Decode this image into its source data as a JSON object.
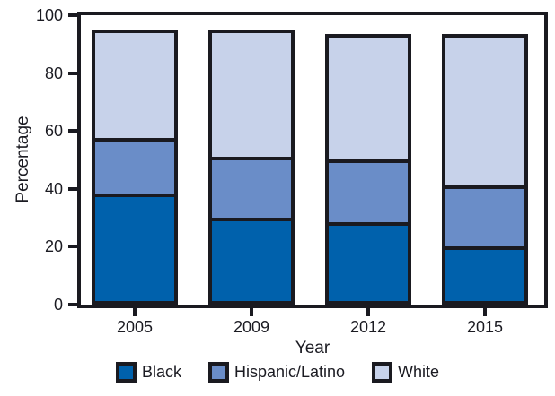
{
  "chart_data": {
    "type": "bar",
    "stacked": true,
    "title": "",
    "xlabel": "Year",
    "ylabel": "Percentage",
    "ylim": [
      0,
      100
    ],
    "yticks": [
      0,
      20,
      40,
      60,
      80,
      100
    ],
    "grid": false,
    "legend_position": "bottom",
    "categories": [
      "2005",
      "2009",
      "2012",
      "2015"
    ],
    "series": [
      {
        "name": "Black",
        "color": "#0061ac",
        "values": [
          38,
          29,
          27.5,
          18.5
        ]
      },
      {
        "name": "Hispanic/Latino",
        "color": "#6a8dc8",
        "values": [
          19,
          21,
          21.5,
          21
        ]
      },
      {
        "name": "White",
        "color": "#c7d2ea",
        "values": [
          38,
          45,
          44.5,
          54
        ]
      }
    ],
    "bar_totals": [
      95,
      95,
      93.5,
      93.5
    ]
  },
  "colors": {
    "axis": "#1a1a20",
    "text": "#1b1b22",
    "background": "#ffffff"
  }
}
